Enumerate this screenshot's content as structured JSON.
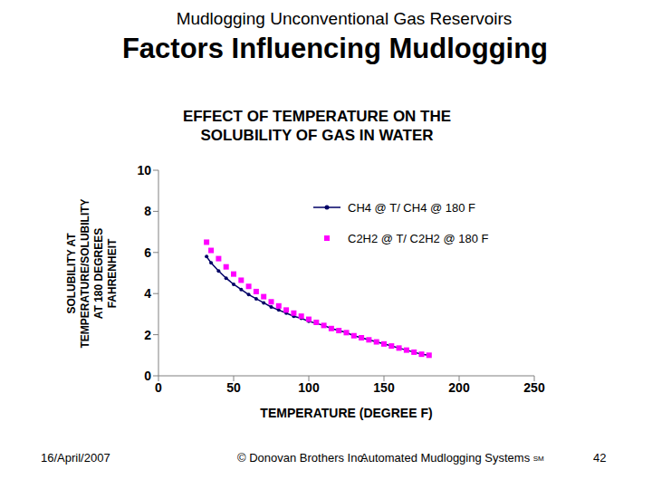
{
  "slide": {
    "header": "Mudlogging Unconventional Gas Reservoirs",
    "heading": "Factors Influencing Mudlogging",
    "footer_date": "16/April/2007",
    "footer_copyright": "© Donovan Brothers Inc.",
    "footer_product": "Automated Mudlogging Systems",
    "footer_mark": "SM",
    "page": "42"
  },
  "chart_data": {
    "type": "line",
    "title": "EFFECT OF TEMPERATURE ON THE SOLUBILITY OF GAS IN WATER",
    "xlabel": "TEMPERATURE (DEGREE F)",
    "ylabel": [
      "SOLUBILITY AT",
      "TEMPERATURE/SOLUBILITY",
      "AT 180 DEGREES",
      "FAHRENHEIT"
    ],
    "x": [
      32,
      35,
      40,
      45,
      50,
      55,
      60,
      65,
      70,
      75,
      80,
      85,
      90,
      95,
      100,
      105,
      110,
      115,
      120,
      125,
      130,
      135,
      140,
      145,
      150,
      155,
      160,
      165,
      170,
      175,
      180
    ],
    "series": [
      {
        "name": "CH4 @ T/ CH4 @ 180 F",
        "color": "#000066",
        "marker": "circle",
        "line_style": "solid",
        "values": [
          5.8,
          5.5,
          5.1,
          4.75,
          4.45,
          4.2,
          3.95,
          3.75,
          3.55,
          3.35,
          3.2,
          3.05,
          2.9,
          2.8,
          2.65,
          2.55,
          2.45,
          2.3,
          2.2,
          2.1,
          1.95,
          1.85,
          1.75,
          1.65,
          1.55,
          1.45,
          1.35,
          1.25,
          1.15,
          1.05,
          1.0
        ]
      },
      {
        "name": "C2H2 @ T/ C2H2 @ 180 F",
        "color": "#ff00ff",
        "marker": "square",
        "line_style": "none",
        "values": [
          6.5,
          6.1,
          5.7,
          5.3,
          4.95,
          4.65,
          4.35,
          4.1,
          3.85,
          3.6,
          3.4,
          3.2,
          3.05,
          2.9,
          2.75,
          2.6,
          2.45,
          2.3,
          2.2,
          2.1,
          1.95,
          1.85,
          1.75,
          1.65,
          1.55,
          1.45,
          1.35,
          1.25,
          1.15,
          1.05,
          1.0
        ]
      }
    ],
    "xlim": [
      0,
      250
    ],
    "xticks": [
      0,
      50,
      100,
      150,
      200,
      250
    ],
    "ylim": [
      0,
      10
    ],
    "yticks": [
      0,
      2,
      4,
      6,
      8,
      10
    ],
    "grid": false,
    "legend": "upper right"
  }
}
